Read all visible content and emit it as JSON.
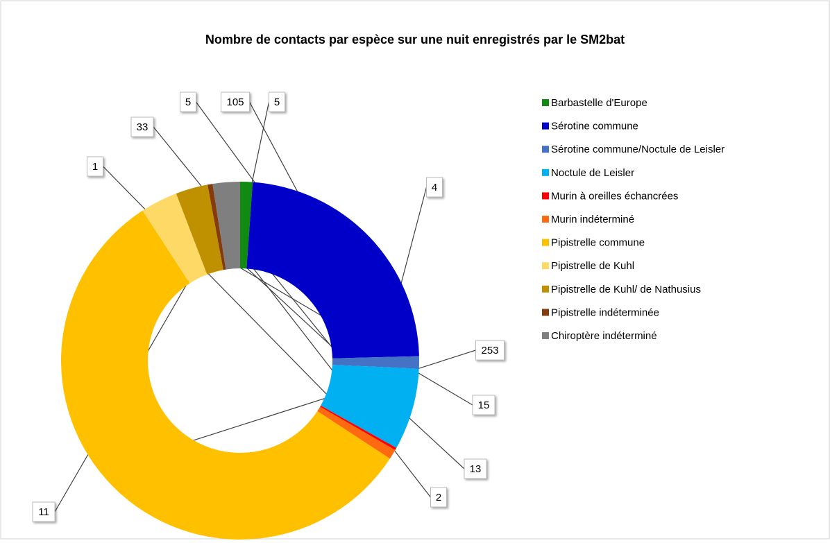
{
  "chart_data": {
    "type": "donut",
    "title": "Nombre de contacts par espèce sur une nuit enregistrés par le SM2bat",
    "categories": [
      "Barbastelle d'Europe",
      "Sérotine commune",
      "Sérotine commune/Noctule de Leisler",
      "Noctule de Leisler",
      "Murin à oreilles échancrées",
      "Murin indéterminé",
      "Pipistrelle commune",
      "Pipistrelle de Kuhl",
      "Pipistrelle de Kuhl/ de Nathusius",
      "Pipistrelle indéterminée",
      "Chiroptère indéterminé"
    ],
    "values": [
      5,
      105,
      5,
      33,
      1,
      4,
      253,
      15,
      13,
      2,
      11
    ],
    "colors": [
      "#108a10",
      "#0000c8",
      "#4472c4",
      "#00b0f0",
      "#ff0000",
      "#ff6a10",
      "#ffc000",
      "#ffd966",
      "#bf9000",
      "#843c0c",
      "#7f7f7f"
    ],
    "legend": "right"
  }
}
